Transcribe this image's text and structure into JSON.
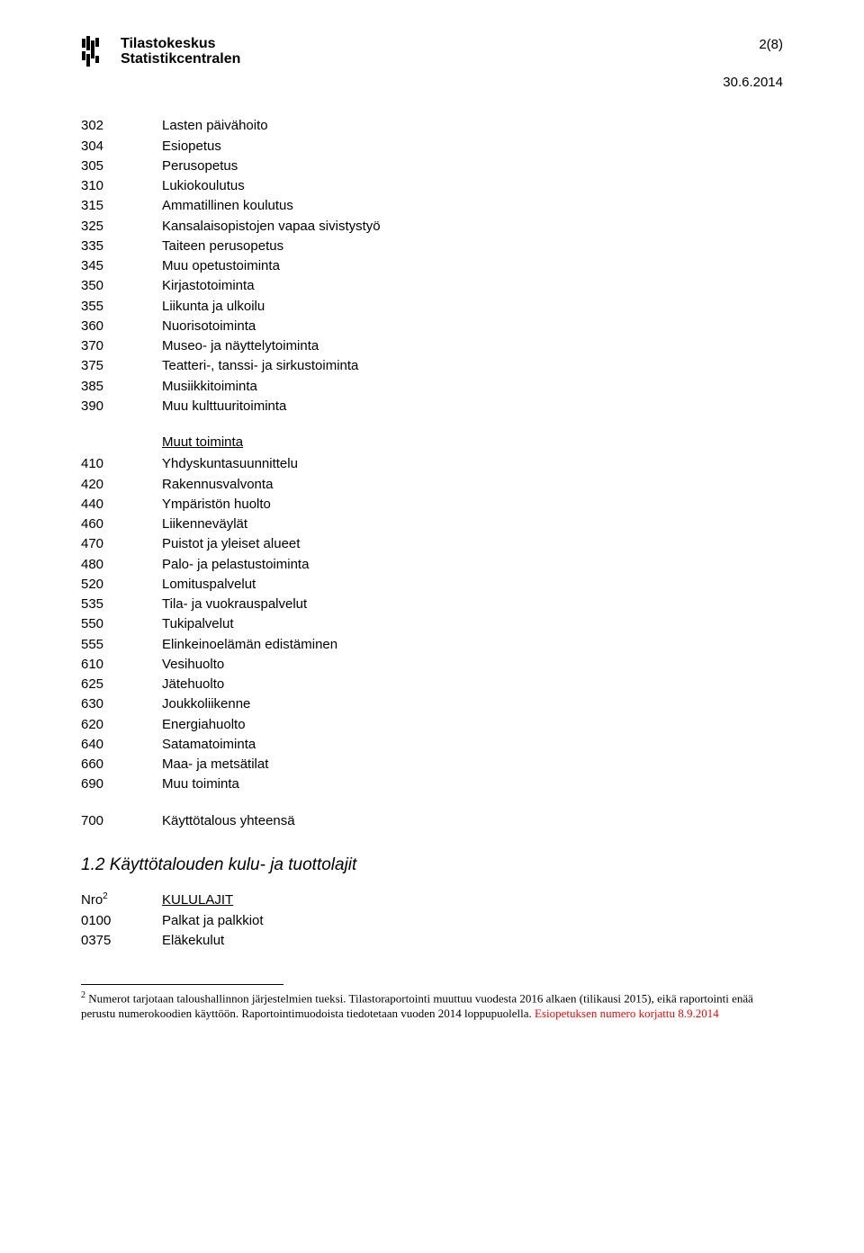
{
  "logo": {
    "line1": "Tilastokeskus",
    "line2": "Statistikcentralen"
  },
  "page_number": "2(8)",
  "date": "30.6.2014",
  "block1": [
    [
      "302",
      "Lasten päivähoito"
    ],
    [
      "304",
      "Esiopetus"
    ],
    [
      "305",
      "Perusopetus"
    ],
    [
      "310",
      "Lukiokoulutus"
    ],
    [
      "315",
      "Ammatillinen koulutus"
    ],
    [
      "325",
      "Kansalaisopistojen vapaa sivistystyö"
    ],
    [
      "335",
      "Taiteen perusopetus"
    ],
    [
      "345",
      "Muu opetustoiminta"
    ],
    [
      "350",
      "Kirjastotoiminta"
    ],
    [
      "355",
      "Liikunta ja ulkoilu"
    ],
    [
      "360",
      "Nuorisotoiminta"
    ],
    [
      "370",
      "Museo- ja näyttelytoiminta"
    ],
    [
      "375",
      "Teatteri-, tanssi- ja sirkustoiminta"
    ],
    [
      "385",
      "Musiikkitoiminta"
    ],
    [
      "390",
      "Muu kulttuuritoiminta"
    ]
  ],
  "block2_heading": "Muut toiminta",
  "block2": [
    [
      "410",
      "Yhdyskuntasuunnittelu"
    ],
    [
      "420",
      "Rakennusvalvonta"
    ],
    [
      "440",
      "Ympäristön huolto"
    ],
    [
      "460",
      "Liikenneväylät"
    ],
    [
      "470",
      "Puistot ja yleiset alueet"
    ],
    [
      "480",
      "Palo- ja pelastustoiminta"
    ],
    [
      "520",
      "Lomituspalvelut"
    ],
    [
      "535",
      "Tila- ja vuokrauspalvelut"
    ],
    [
      "550",
      "Tukipalvelut"
    ],
    [
      "555",
      "Elinkeinoelämän edistäminen"
    ],
    [
      "610",
      "Vesihuolto"
    ],
    [
      "625",
      "Jätehuolto"
    ],
    [
      "630",
      "Joukkoliikenne"
    ],
    [
      "620",
      "Energiahuolto"
    ],
    [
      "640",
      "Satamatoiminta"
    ],
    [
      "660",
      "Maa- ja metsätilat"
    ],
    [
      "690",
      "Muu toiminta"
    ]
  ],
  "block3": [
    [
      "700",
      "Käyttötalous yhteensä"
    ]
  ],
  "section_heading": "1.2 Käyttötalouden kulu- ja tuottolajit",
  "kululajit": {
    "nro_label": "Nro",
    "nro_sup": "2",
    "heading": "KULULAJIT",
    "rows": [
      [
        "0100",
        "Palkat ja palkkiot"
      ],
      [
        "0375",
        "Eläkekulut"
      ]
    ]
  },
  "footnote": {
    "sup": "2",
    "black_text": " Numerot tarjotaan taloushallinnon järjestelmien tueksi. Tilastoraportointi muuttuu vuodesta 2016 alkaen (tilikausi 2015), eikä raportointi enää perustu numerokoodien käyttöön. Raportointimuodoista tiedotetaan vuoden 2014 loppupuolella. ",
    "red_text": "Esiopetuksen numero korjattu 8.9.2014"
  },
  "colors": {
    "text": "#000000",
    "background": "#ffffff",
    "accent_red": "#ff0000"
  }
}
